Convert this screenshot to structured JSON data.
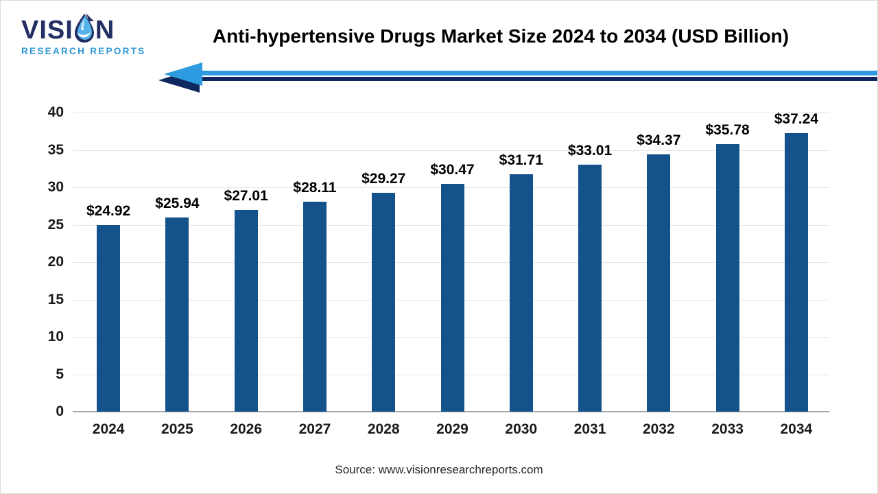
{
  "logo": {
    "brand_part1": "VISI",
    "brand_part2": "N",
    "brand_sub": "RESEARCH REPORTS"
  },
  "header": {
    "title": "Anti-hypertensive Drugs Market Size 2024 to 2034 (USD Billion)"
  },
  "footer": {
    "source": "Source: www.visionresearchreports.com"
  },
  "colors": {
    "bar": "#14528C",
    "gridline": "#E5E5E5",
    "zero_axis": "#A6A6A6",
    "arrow_light": "#2E9BE0",
    "arrow_dark": "#0F2960",
    "logo_navy": "#232E63",
    "logo_blue": "#2B97D8",
    "drop_light": "#56B3EA",
    "drop_mid": "#2F86C8",
    "title_text": "#000000",
    "axis_text": "#1a1a1a"
  },
  "chart_data": {
    "type": "bar",
    "title": "Anti-hypertensive Drugs Market Size 2024 to 2034 (USD Billion)",
    "categories": [
      "2024",
      "2025",
      "2026",
      "2027",
      "2028",
      "2029",
      "2030",
      "2031",
      "2032",
      "2033",
      "2034"
    ],
    "values": [
      24.92,
      25.94,
      27.01,
      28.11,
      29.27,
      30.47,
      31.71,
      33.01,
      34.37,
      35.78,
      37.24
    ],
    "labels": [
      "$24.92",
      "$25.94",
      "$27.01",
      "$28.11",
      "$29.27",
      "$30.47",
      "$31.71",
      "$33.01",
      "$34.37",
      "$35.78",
      "$37.24"
    ],
    "xlabel": "",
    "ylabel": "",
    "ylim": [
      0,
      40
    ],
    "ytick_step": 5,
    "grid": true,
    "legend": "none",
    "bar_color": "#14528C"
  }
}
